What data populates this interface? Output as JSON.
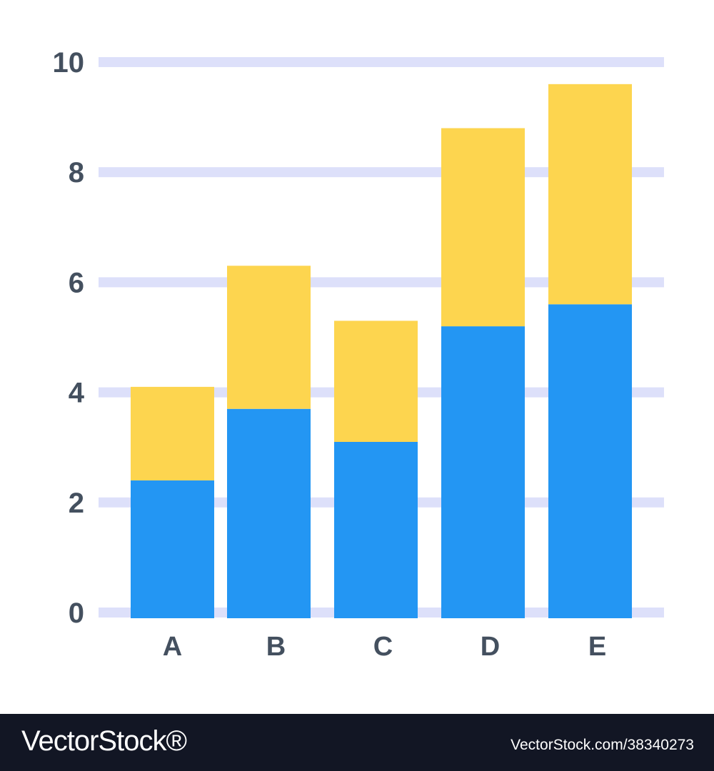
{
  "chart_data": {
    "type": "bar",
    "stacked": true,
    "categories": [
      "A",
      "B",
      "C",
      "D",
      "E"
    ],
    "series": [
      {
        "color": "#2396f3",
        "values": [
          2.4,
          3.7,
          3.1,
          5.2,
          5.6
        ]
      },
      {
        "color": "#fdd54f",
        "values": [
          1.7,
          2.6,
          2.2,
          3.6,
          4.0
        ]
      }
    ],
    "totals": [
      4.1,
      6.3,
      5.3,
      8.8,
      9.6
    ],
    "yticks": [
      "0",
      "2",
      "4",
      "6",
      "8",
      "10"
    ],
    "ylim": [
      0,
      10
    ],
    "grid": true,
    "gridline_color": "#dde0fa",
    "legend": "none"
  },
  "footer": {
    "brand": "VectorStock®",
    "image_id": "VectorStock.com/38340273"
  }
}
